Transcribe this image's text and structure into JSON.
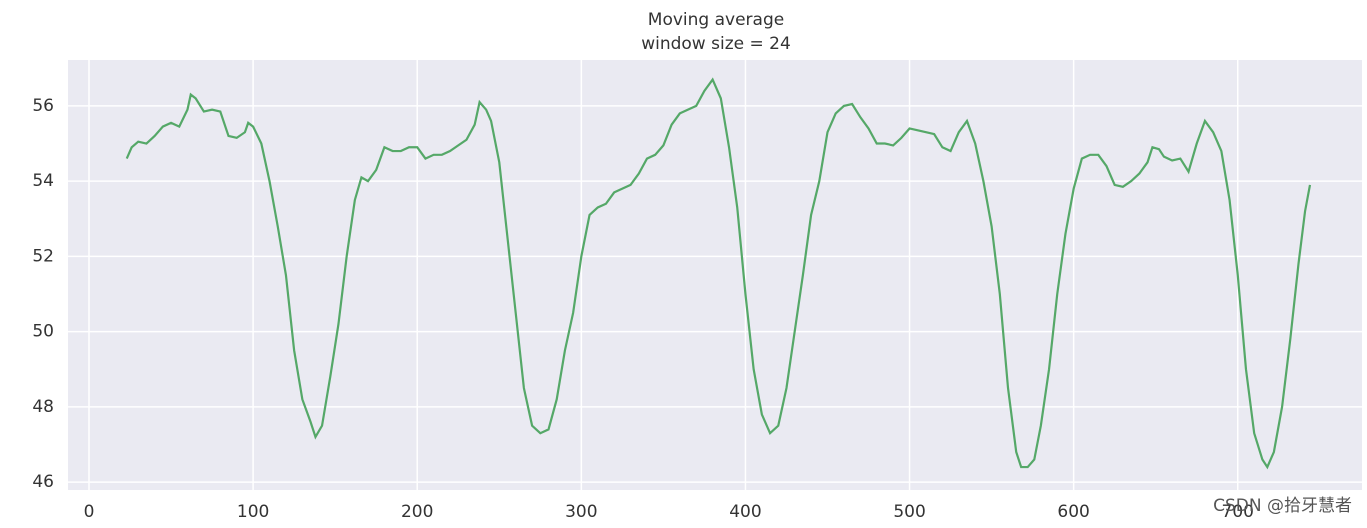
{
  "chart_data": {
    "type": "line",
    "title": "Moving average",
    "subtitle": "window size = 24",
    "watermark": "CSDN @拾牙慧者",
    "x": [
      23,
      26,
      30,
      35,
      40,
      45,
      50,
      55,
      60,
      62,
      65,
      70,
      75,
      80,
      85,
      90,
      95,
      97,
      100,
      105,
      110,
      115,
      120,
      125,
      130,
      135,
      138,
      142,
      147,
      152,
      157,
      162,
      166,
      170,
      175,
      180,
      185,
      190,
      195,
      200,
      205,
      210,
      215,
      220,
      225,
      230,
      235,
      238,
      242,
      245,
      250,
      255,
      260,
      265,
      270,
      275,
      280,
      285,
      290,
      295,
      300,
      305,
      310,
      315,
      320,
      325,
      330,
      335,
      340,
      345,
      350,
      355,
      360,
      365,
      370,
      375,
      380,
      385,
      390,
      395,
      400,
      405,
      410,
      415,
      420,
      425,
      430,
      435,
      440,
      445,
      450,
      455,
      460,
      465,
      470,
      475,
      480,
      485,
      490,
      495,
      500,
      505,
      510,
      515,
      520,
      525,
      530,
      535,
      540,
      545,
      550,
      555,
      560,
      565,
      568,
      572,
      576,
      580,
      585,
      590,
      595,
      600,
      605,
      610,
      615,
      620,
      625,
      630,
      635,
      640,
      645,
      648,
      652,
      655,
      660,
      665,
      670,
      675,
      680,
      685,
      690,
      695,
      700,
      705,
      710,
      715,
      718,
      722,
      727,
      732,
      737,
      741,
      744
    ],
    "series": [
      {
        "name": "moving average",
        "color": "#55a868",
        "values": [
          54.6,
          54.9,
          55.05,
          55.0,
          55.2,
          55.45,
          55.55,
          55.45,
          55.9,
          56.3,
          56.2,
          55.85,
          55.9,
          55.85,
          55.2,
          55.15,
          55.3,
          55.55,
          55.45,
          55.0,
          54.0,
          52.8,
          51.5,
          49.5,
          48.2,
          47.6,
          47.2,
          47.5,
          48.8,
          50.2,
          52.0,
          53.5,
          54.1,
          54.0,
          54.3,
          54.9,
          54.8,
          54.8,
          54.9,
          54.9,
          54.6,
          54.7,
          54.7,
          54.8,
          54.95,
          55.1,
          55.5,
          56.1,
          55.9,
          55.6,
          54.5,
          52.5,
          50.5,
          48.5,
          47.5,
          47.3,
          47.4,
          48.2,
          49.5,
          50.5,
          52.0,
          53.1,
          53.3,
          53.4,
          53.7,
          53.8,
          53.9,
          54.2,
          54.6,
          54.7,
          54.95,
          55.5,
          55.8,
          55.9,
          56.0,
          56.4,
          56.7,
          56.2,
          54.9,
          53.3,
          51.0,
          49.0,
          47.8,
          47.3,
          47.5,
          48.5,
          50.0,
          51.5,
          53.1,
          54.0,
          55.3,
          55.8,
          56.0,
          56.05,
          55.7,
          55.4,
          55.0,
          55.0,
          54.95,
          55.15,
          55.4,
          55.35,
          55.3,
          55.25,
          54.9,
          54.8,
          55.3,
          55.6,
          55.0,
          54.0,
          52.8,
          51.0,
          48.5,
          46.8,
          46.4,
          46.4,
          46.6,
          47.5,
          49.0,
          51.0,
          52.6,
          53.8,
          54.6,
          54.7,
          54.7,
          54.4,
          53.9,
          53.85,
          54.0,
          54.2,
          54.5,
          54.9,
          54.85,
          54.65,
          54.55,
          54.6,
          54.25,
          55.0,
          55.6,
          55.3,
          54.8,
          53.5,
          51.5,
          49.0,
          47.3,
          46.6,
          46.4,
          46.8,
          48.0,
          49.8,
          51.8,
          53.2,
          53.9
        ]
      }
    ],
    "xlim": [
      -12.8,
      775.7
    ],
    "ylim": [
      45.79,
      57.22
    ],
    "xticks": [
      0,
      100,
      200,
      300,
      400,
      500,
      600,
      700
    ],
    "yticks": [
      46,
      48,
      50,
      52,
      54,
      56
    ],
    "grid": true,
    "background": "#eaeaf2"
  }
}
